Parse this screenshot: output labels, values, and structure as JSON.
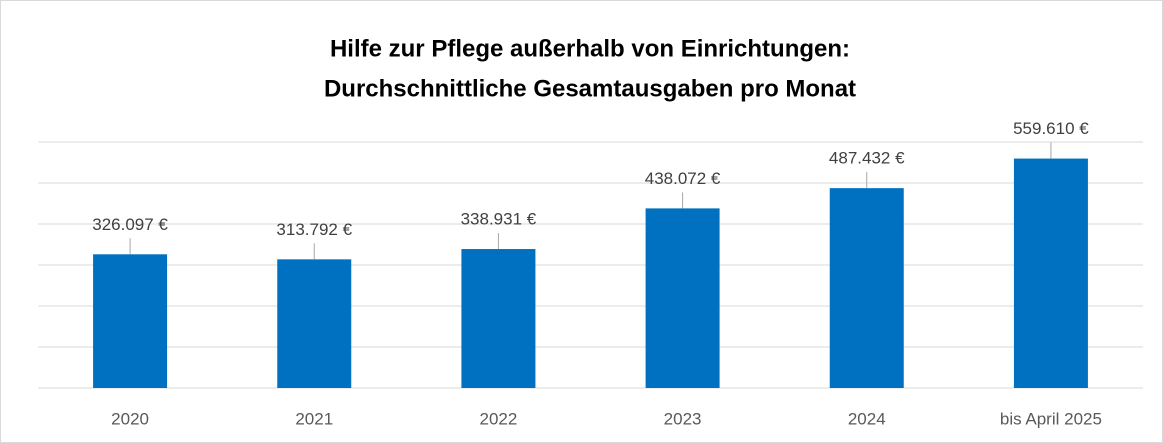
{
  "chart_data": {
    "type": "bar",
    "title": [
      "Hilfe zur Pflege außerhalb von Einrichtungen:",
      "Durchschnittliche Gesamtausgaben pro Monat"
    ],
    "categories": [
      "2020",
      "2021",
      "2022",
      "2023",
      "2024",
      "bis April 2025"
    ],
    "values": [
      326097,
      313792,
      338931,
      438072,
      487432,
      559610
    ],
    "value_labels": [
      "326.097 €",
      "313.792 €",
      "338.931 €",
      "438.072 €",
      "487.432 €",
      "559.610 €"
    ],
    "color": "#0070c0",
    "ylim": [
      0,
      600000
    ],
    "yticks": [
      0,
      100000,
      200000,
      300000,
      400000,
      500000,
      600000
    ],
    "grid": true
  }
}
